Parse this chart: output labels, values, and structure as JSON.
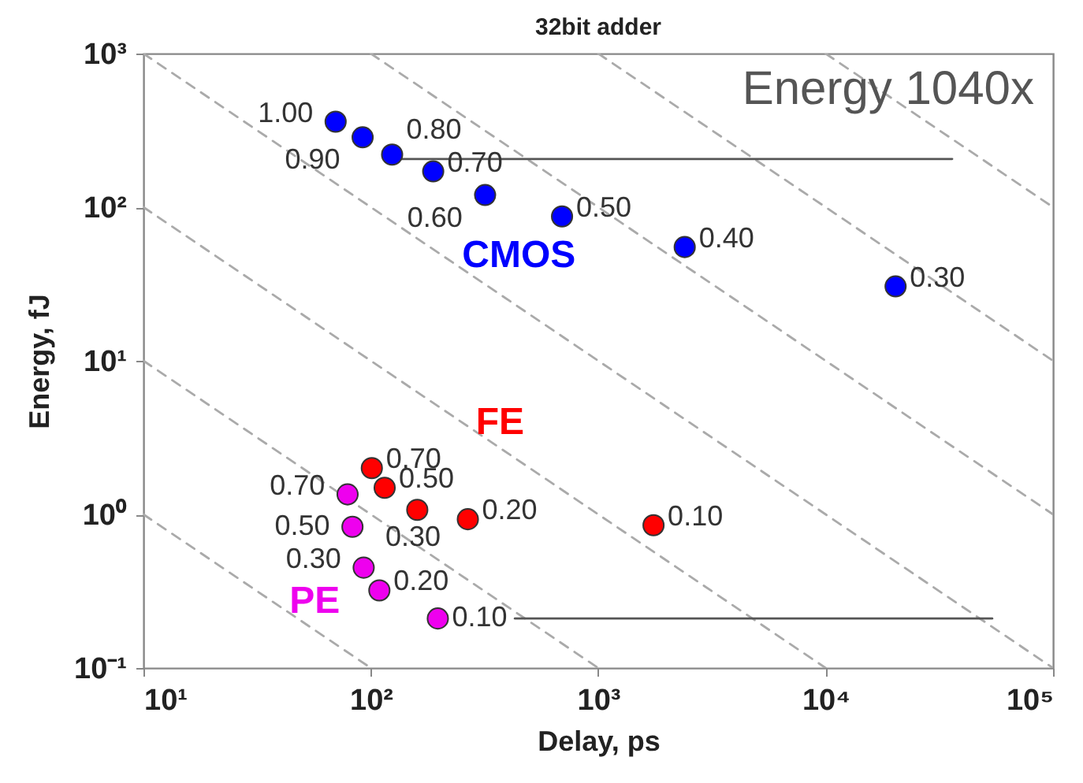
{
  "chart_data": {
    "type": "scatter",
    "title": "32bit adder",
    "xlabel": "Delay, ps",
    "ylabel": "Energy, fJ",
    "log": "xy",
    "grid": false,
    "marker": "circle",
    "xlim": [
      10,
      100000
    ],
    "ylim": [
      0.1,
      1000
    ],
    "xticks": [
      {
        "value": 10,
        "label": "10¹"
      },
      {
        "value": 100,
        "label": "10²"
      },
      {
        "value": 1000,
        "label": "10³"
      },
      {
        "value": 10000,
        "label": "10⁴"
      },
      {
        "value": 100000,
        "label": "10⁵"
      }
    ],
    "yticks": [
      {
        "value": 0.1,
        "label": "10⁻¹"
      },
      {
        "value": 1,
        "label": "10⁰"
      },
      {
        "value": 10,
        "label": "10¹"
      },
      {
        "value": 100,
        "label": "10²"
      },
      {
        "value": 1000,
        "label": "10³"
      }
    ],
    "series": [
      {
        "type": "line",
        "color": "#aaaaaa",
        "line_style": "dashed",
        "marker": "none",
        "x": [
          10,
          100
        ],
        "values": [
          1,
          0.1
        ]
      },
      {
        "type": "line",
        "color": "#aaaaaa",
        "line_style": "dashed",
        "marker": "none",
        "x": [
          10,
          1000
        ],
        "values": [
          10,
          0.1
        ]
      },
      {
        "type": "line",
        "color": "#aaaaaa",
        "line_style": "dashed",
        "marker": "none",
        "x": [
          10,
          10000
        ],
        "values": [
          100,
          0.1
        ]
      },
      {
        "type": "line",
        "color": "#aaaaaa",
        "line_style": "dashed",
        "marker": "none",
        "x": [
          10,
          100000
        ],
        "values": [
          1000,
          0.1
        ]
      },
      {
        "type": "line",
        "color": "#aaaaaa",
        "line_style": "dashed",
        "marker": "none",
        "x": [
          100,
          100000
        ],
        "values": [
          1000,
          1
        ]
      },
      {
        "type": "line",
        "color": "#aaaaaa",
        "line_style": "dashed",
        "marker": "none",
        "x": [
          1000,
          100000
        ],
        "values": [
          1000,
          10
        ]
      },
      {
        "type": "line",
        "color": "#aaaaaa",
        "line_style": "dashed",
        "marker": "none",
        "x": [
          10000,
          100000
        ],
        "values": [
          1000,
          100
        ]
      },
      {
        "type": "line",
        "color": "#555555",
        "line_style": "solid",
        "marker": "none",
        "x": [
          120,
          36000
        ],
        "values": [
          206,
          206
        ]
      },
      {
        "type": "line",
        "color": "#555555",
        "line_style": "solid",
        "marker": "none",
        "x": [
          430,
          54000
        ],
        "values": [
          0.21,
          0.21
        ]
      },
      {
        "name": "CMOS",
        "color": "#0000ff",
        "x": [
          70,
          92,
          124,
          188,
          318,
          693,
          2400,
          20300
        ],
        "values": [
          360,
          285,
          220,
          171,
          120,
          87,
          55,
          30.5
        ]
      },
      {
        "name": "FE",
        "color": "#ff0000",
        "x": [
          101,
          115,
          160,
          267,
          1750
        ],
        "values": [
          2.0,
          1.49,
          1.07,
          0.93,
          0.85
        ]
      },
      {
        "name": "PE",
        "color": "#ee00ee",
        "x": [
          79,
          83,
          93,
          109,
          197
        ],
        "values": [
          1.35,
          0.83,
          0.45,
          0.32,
          0.21
        ]
      }
    ],
    "annotations": [
      "Energy 1040x",
      {
        "text": "1.00",
        "x": 70,
        "y": 360
      },
      {
        "text": "0.90",
        "x": 92,
        "y": 285
      },
      {
        "text": "0.80",
        "x": 124,
        "y": 220
      },
      {
        "text": "0.70",
        "x": 188,
        "y": 171
      },
      {
        "text": "0.60",
        "x": 318,
        "y": 120
      },
      {
        "text": "0.50",
        "x": 693,
        "y": 87
      },
      {
        "text": "0.40",
        "x": 2400,
        "y": 55
      },
      {
        "text": "0.30",
        "x": 20300,
        "y": 30.5
      },
      {
        "text": "0.70",
        "x": 101,
        "y": 2.0
      },
      {
        "text": "0.50",
        "x": 115,
        "y": 1.49
      },
      {
        "text": "0.30",
        "x": 160,
        "y": 1.07
      },
      {
        "text": "0.20",
        "x": 267,
        "y": 0.93
      },
      {
        "text": "0.10",
        "x": 1750,
        "y": 0.85
      },
      {
        "text": "0.70",
        "x": 79,
        "y": 1.35
      },
      {
        "text": "0.50",
        "x": 83,
        "y": 0.83
      },
      {
        "text": "0.30",
        "x": 93,
        "y": 0.45
      },
      {
        "text": "0.20",
        "x": 109,
        "y": 0.32
      },
      {
        "text": "0.10",
        "x": 197,
        "y": 0.21
      }
    ]
  }
}
